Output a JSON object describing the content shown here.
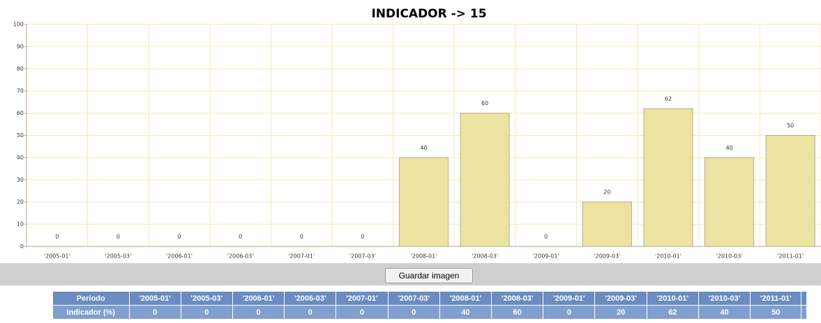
{
  "chart_data": {
    "type": "bar",
    "title": "INDICADOR -> 15",
    "categories": [
      "'2005-01'",
      "'2005-03'",
      "'2006-01'",
      "'2006-03'",
      "'2007-01'",
      "'2007-03'",
      "'2008-01'",
      "'2008-03'",
      "'2009-01'",
      "'2009-03'",
      "'2010-01'",
      "'2010-03'",
      "'2011-01'"
    ],
    "values": [
      0,
      0,
      0,
      0,
      0,
      0,
      40,
      60,
      0,
      20,
      62,
      40,
      50
    ],
    "color": "#ece3a2",
    "ylim": [
      0,
      100
    ],
    "yticks": [
      0,
      10,
      20,
      30,
      40,
      50,
      60,
      70,
      80,
      90,
      100
    ],
    "grid": true
  },
  "button": {
    "label": "Guardar imagen"
  },
  "table": {
    "header_label": "Periodo",
    "row_label": "Indicador (%)"
  }
}
